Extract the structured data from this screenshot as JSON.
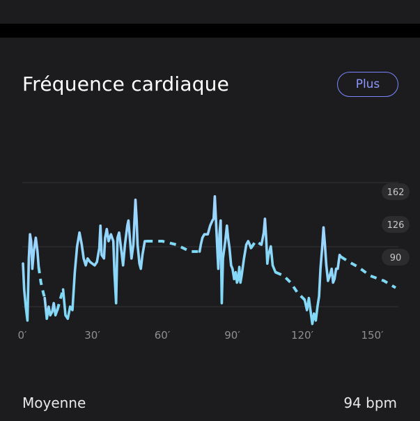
{
  "card": {
    "title": "Fréquence cardiaque",
    "more_button": "Plus"
  },
  "colors": {
    "background": "#1c1c1e",
    "line": "#7fd9f5",
    "line_top": "#9fd4ff",
    "accent": "#7b86ff",
    "pill": "#2c2c2e",
    "grid": "#333336",
    "tick_text": "#8e8e93"
  },
  "chart_data": {
    "type": "line",
    "xlabel": "",
    "ylabel": "",
    "xlim": [
      0,
      160
    ],
    "ylim": [
      45,
      207
    ],
    "x_ticks": [
      "0′",
      "30′",
      "60′",
      "90′",
      "120′",
      "150′"
    ],
    "x_tick_values": [
      0,
      30,
      60,
      90,
      120,
      150
    ],
    "y_ticks": [
      "162",
      "126",
      "90"
    ],
    "y_tick_values": [
      162,
      126,
      90
    ],
    "series": [
      {
        "style": "solid",
        "points": [
          [
            0.3,
            115
          ],
          [
            0.8,
            100
          ],
          [
            1.5,
            90
          ],
          [
            2.2,
            82
          ],
          [
            2.8,
            118
          ],
          [
            3.3,
            132
          ],
          [
            3.8,
            128
          ],
          [
            4.3,
            112
          ],
          [
            5,
            123
          ],
          [
            5.8,
            130
          ],
          [
            6.5,
            122
          ],
          [
            7,
            113
          ]
        ]
      },
      {
        "style": "dashed",
        "points": [
          [
            7,
            113
          ],
          [
            8,
            104
          ],
          [
            9,
            98
          ],
          [
            9.6,
            95
          ]
        ]
      },
      {
        "style": "solid",
        "points": [
          [
            9.6,
            95
          ],
          [
            10.5,
            83
          ],
          [
            11.3,
            90
          ],
          [
            12,
            85
          ],
          [
            12.8,
            87
          ],
          [
            13.5,
            92
          ],
          [
            14.2,
            85
          ],
          [
            15,
            88
          ]
        ]
      },
      {
        "style": "dashed",
        "points": [
          [
            15,
            88
          ],
          [
            16.2,
            94
          ],
          [
            17.5,
            100
          ]
        ]
      },
      {
        "style": "solid",
        "points": [
          [
            17.5,
            100
          ],
          [
            18.5,
            85
          ],
          [
            19.5,
            83
          ],
          [
            20.5,
            90
          ],
          [
            21.5,
            88
          ],
          [
            22.5,
            110
          ],
          [
            23.5,
            125
          ],
          [
            24.5,
            133
          ],
          [
            25.5,
            126
          ],
          [
            26.3,
            118
          ],
          [
            27.2,
            114
          ],
          [
            28,
            118
          ],
          [
            29,
            116
          ],
          [
            30,
            115
          ],
          [
            31,
            114
          ],
          [
            32,
            116
          ],
          [
            33,
            124
          ],
          [
            33.5,
            137
          ],
          [
            34,
            120
          ],
          [
            35,
            118
          ],
          [
            35.5,
            130
          ],
          [
            36.2,
            135
          ],
          [
            37,
            128
          ],
          [
            38,
            132
          ],
          [
            39,
            128
          ],
          [
            39.5,
            110
          ],
          [
            40.2,
            92
          ],
          [
            40.8,
            130
          ],
          [
            41.5,
            133
          ],
          [
            42.5,
            122
          ],
          [
            43.2,
            114
          ],
          [
            44,
            126
          ],
          [
            45,
            137
          ],
          [
            45.5,
            140
          ],
          [
            46.1,
            130
          ],
          [
            46.8,
            118
          ],
          [
            47.6,
            126
          ],
          [
            48,
            138
          ],
          [
            48.5,
            152
          ],
          [
            49,
            140
          ],
          [
            49.4,
            126
          ],
          [
            50.2,
            115
          ],
          [
            50.8,
            112
          ],
          [
            51.5,
            120
          ],
          [
            52.5,
            128
          ],
          [
            53.2,
            128
          ]
        ]
      },
      {
        "style": "dashed",
        "points": [
          [
            53.2,
            128
          ],
          [
            60,
            128
          ],
          [
            66,
            126
          ],
          [
            72,
            122
          ],
          [
            76,
            122
          ]
        ]
      },
      {
        "style": "solid",
        "points": [
          [
            76,
            122
          ],
          [
            76.5,
            126
          ],
          [
            77.2,
            130
          ],
          [
            78,
            132
          ],
          [
            79.5,
            132
          ],
          [
            80.5,
            137
          ],
          [
            81.5,
            140
          ],
          [
            82,
            141
          ],
          [
            82.5,
            154
          ],
          [
            83,
            140
          ],
          [
            83.5,
            126
          ],
          [
            84,
            112
          ],
          [
            84.5,
            132
          ],
          [
            85,
            140
          ],
          [
            85.5,
            92
          ],
          [
            86,
            118
          ],
          [
            87,
            128
          ],
          [
            87.7,
            137
          ],
          [
            88.2,
            130
          ],
          [
            88.8,
            124
          ],
          [
            89.5,
            114
          ],
          [
            90.1,
            112
          ],
          [
            90.8,
            106
          ],
          [
            91.5,
            110
          ],
          [
            92,
            104
          ],
          [
            92.5,
            106
          ],
          [
            93,
            113
          ],
          [
            93.5,
            104
          ],
          [
            94,
            108
          ],
          [
            95,
            118
          ],
          [
            96,
            126
          ],
          [
            96.8,
            128
          ],
          [
            97.5,
            126
          ],
          [
            98,
            124
          ]
        ]
      },
      {
        "style": "dashed",
        "points": [
          [
            98,
            124
          ],
          [
            100,
            128
          ],
          [
            102.5,
            126
          ]
        ]
      },
      {
        "style": "solid",
        "points": [
          [
            102.5,
            126
          ],
          [
            103.5,
            133
          ],
          [
            104,
            141
          ],
          [
            104.5,
            130
          ],
          [
            105,
            115
          ],
          [
            105.5,
            120
          ],
          [
            106.5,
            125
          ],
          [
            107.3,
            114
          ],
          [
            108.5,
            110
          ]
        ]
      },
      {
        "style": "dashed",
        "points": [
          [
            108.5,
            110
          ],
          [
            112,
            108
          ],
          [
            115,
            104
          ],
          [
            118,
            98
          ],
          [
            121,
            94
          ]
        ]
      },
      {
        "style": "solid",
        "points": [
          [
            121,
            94
          ],
          [
            122,
            88
          ],
          [
            122.8,
            95
          ],
          [
            123.5,
            88
          ],
          [
            124.3,
            80
          ],
          [
            125,
            86
          ],
          [
            125.8,
            82
          ],
          [
            126.5,
            90
          ],
          [
            127.2,
            96
          ],
          [
            127.8,
            112
          ],
          [
            128.5,
            124
          ],
          [
            129.1,
            136
          ],
          [
            129.7,
            126
          ],
          [
            130.3,
            114
          ],
          [
            131,
            105
          ],
          [
            131.8,
            108
          ],
          [
            132.6,
            112
          ],
          [
            133.2,
            104
          ],
          [
            133.8,
            106
          ],
          [
            134.5,
            112
          ],
          [
            135.2,
            112
          ],
          [
            136,
            120
          ],
          [
            136.5,
            119
          ]
        ]
      },
      {
        "style": "dashed",
        "points": [
          [
            136.5,
            119
          ],
          [
            140,
            116
          ],
          [
            144,
            113
          ],
          [
            149,
            108
          ],
          [
            155,
            105
          ],
          [
            160,
            101
          ]
        ]
      }
    ]
  },
  "footer": {
    "label": "Moyenne",
    "value": "94 bpm"
  }
}
